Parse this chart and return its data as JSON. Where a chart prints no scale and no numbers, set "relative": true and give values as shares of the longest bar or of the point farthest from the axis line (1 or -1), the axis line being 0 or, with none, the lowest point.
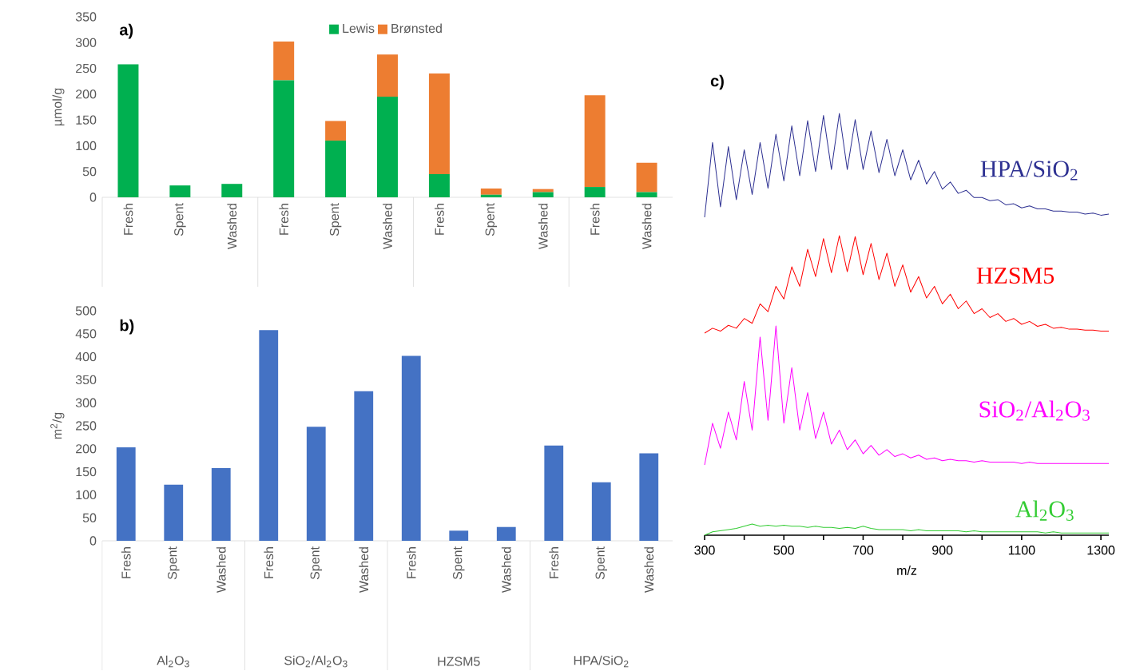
{
  "chart_data": [
    {
      "type": "bar",
      "stacked": true,
      "ylabel": "µmol/g",
      "ylim": [
        0,
        350
      ],
      "yticks": [
        0,
        50,
        100,
        150,
        200,
        250,
        300,
        350
      ],
      "legend": "top",
      "annotations": [
        "**a)**"
      ],
      "categories": [
        "Fresh",
        "Spent",
        "Washed",
        "Fresh",
        "Spent",
        "Washed",
        "Fresh",
        "Spent",
        "Washed",
        "Fresh",
        "Washed"
      ],
      "series": [
        {
          "name": "Lewis",
          "color": "#00b050",
          "values": [
            258,
            23,
            26,
            227,
            110,
            195,
            45,
            5,
            10,
            20,
            10
          ]
        },
        {
          "name": "Brønsted",
          "color": "#ed7d31",
          "values": [
            0,
            0,
            0,
            75,
            38,
            82,
            195,
            12,
            6,
            178,
            57
          ]
        }
      ]
    },
    {
      "type": "bar",
      "ylabel": "m$^{2}$/g",
      "ylim": [
        0,
        500
      ],
      "yticks": [
        0,
        50,
        100,
        150,
        200,
        250,
        300,
        350,
        400,
        450,
        500
      ],
      "annotations": [
        "**b)**",
        "Al$_{2}$O$_{3}$",
        "SiO$_{2}$/Al$_{2}$O$_{3}$",
        "HZSM5",
        "HPA/SiO$_{2}$"
      ],
      "categories": [
        "Fresh",
        "Spent",
        "Washed",
        "Fresh",
        "Spent",
        "Washed",
        "Fresh",
        "Spent",
        "Washed",
        "Fresh",
        "Spent",
        "Washed"
      ],
      "color": "#4472c4",
      "values": [
        203,
        122,
        158,
        458,
        248,
        325,
        402,
        22,
        30,
        207,
        127,
        190
      ]
    },
    {
      "type": "line",
      "relative": true,
      "tick_labels": false,
      "annotations": [
        "**c)**"
      ],
      "x": [
        300,
        320,
        340,
        360,
        380,
        400,
        420,
        440,
        460,
        480,
        500,
        520,
        540,
        560,
        580,
        600,
        620,
        640,
        660,
        680,
        700,
        720,
        740,
        760,
        780,
        800,
        820,
        840,
        860,
        880,
        900,
        920,
        940,
        960,
        980,
        1000,
        1020,
        1040,
        1060,
        1080,
        1100,
        1120,
        1140,
        1160,
        1180,
        1200,
        1220,
        1240,
        1260,
        1280,
        1300,
        1320
      ],
      "series": [
        {
          "name": "HPA/SiO$_{2}$",
          "color": "#2e3192",
          "values": [
            0,
            0.72,
            0.1,
            0.68,
            0.17,
            0.65,
            0.22,
            0.72,
            0.28,
            0.8,
            0.35,
            0.88,
            0.4,
            0.93,
            0.44,
            0.98,
            0.46,
            1.0,
            0.46,
            0.94,
            0.46,
            0.83,
            0.43,
            0.75,
            0.4,
            0.65,
            0.36,
            0.55,
            0.32,
            0.44,
            0.27,
            0.34,
            0.23,
            0.26,
            0.19,
            0.19,
            0.16,
            0.17,
            0.12,
            0.13,
            0.09,
            0.11,
            0.08,
            0.08,
            0.06,
            0.06,
            0.05,
            0.05,
            0.03,
            0.04,
            0.02,
            0.03
          ]
        }
      ]
    },
    {
      "type": "line",
      "relative": true,
      "tick_labels": false,
      "x": [
        300,
        320,
        340,
        360,
        380,
        400,
        420,
        440,
        460,
        480,
        500,
        520,
        540,
        560,
        580,
        600,
        620,
        640,
        660,
        680,
        700,
        720,
        740,
        760,
        780,
        800,
        820,
        840,
        860,
        880,
        900,
        920,
        940,
        960,
        980,
        1000,
        1020,
        1040,
        1060,
        1080,
        1100,
        1120,
        1140,
        1160,
        1180,
        1200,
        1220,
        1240,
        1260,
        1280,
        1300,
        1320
      ],
      "series": [
        {
          "name": "HZSM5",
          "color": "#ff0000",
          "values": [
            0,
            0.05,
            0.02,
            0.08,
            0.05,
            0.15,
            0.1,
            0.3,
            0.22,
            0.48,
            0.35,
            0.68,
            0.48,
            0.86,
            0.58,
            0.97,
            0.62,
            1.0,
            0.63,
            0.99,
            0.6,
            0.92,
            0.55,
            0.82,
            0.48,
            0.7,
            0.42,
            0.58,
            0.36,
            0.48,
            0.3,
            0.4,
            0.25,
            0.33,
            0.2,
            0.25,
            0.16,
            0.2,
            0.12,
            0.15,
            0.09,
            0.12,
            0.07,
            0.09,
            0.05,
            0.06,
            0.04,
            0.04,
            0.03,
            0.03,
            0.02,
            0.02
          ]
        }
      ]
    },
    {
      "type": "line",
      "relative": true,
      "tick_labels": false,
      "x": [
        300,
        320,
        340,
        360,
        380,
        400,
        420,
        440,
        460,
        480,
        500,
        520,
        540,
        560,
        580,
        600,
        620,
        640,
        660,
        680,
        700,
        720,
        740,
        760,
        780,
        800,
        820,
        840,
        860,
        880,
        900,
        920,
        940,
        960,
        980,
        1000,
        1020,
        1040,
        1060,
        1080,
        1100,
        1120,
        1140,
        1160,
        1180,
        1200,
        1220,
        1240,
        1260,
        1280,
        1300,
        1320
      ],
      "series": [
        {
          "name": "SiO$_{2}$/Al$_{2}$O$_{3}$",
          "color": "#ff00ff",
          "values": [
            0,
            0.3,
            0.12,
            0.38,
            0.18,
            0.6,
            0.25,
            0.92,
            0.32,
            1.0,
            0.3,
            0.7,
            0.25,
            0.52,
            0.19,
            0.38,
            0.15,
            0.25,
            0.11,
            0.18,
            0.08,
            0.14,
            0.07,
            0.11,
            0.06,
            0.08,
            0.05,
            0.07,
            0.04,
            0.05,
            0.03,
            0.04,
            0.03,
            0.03,
            0.02,
            0.03,
            0.02,
            0.02,
            0.02,
            0.02,
            0.01,
            0.02,
            0.01,
            0.01,
            0.01,
            0.01,
            0.01,
            0.01,
            0.01,
            0.01,
            0.01,
            0.01
          ]
        }
      ]
    },
    {
      "type": "line",
      "relative": true,
      "tick_labels": "x",
      "xlabel": "m/z",
      "xlim": [
        300,
        1320
      ],
      "xticks": [
        300,
        {
          "value": 400,
          "label": null
        },
        500,
        {
          "value": 600,
          "label": null
        },
        700,
        {
          "value": 800,
          "label": null
        },
        900,
        {
          "value": 1000,
          "label": null
        },
        1100,
        {
          "value": 1200,
          "label": null
        },
        1300
      ],
      "x": [
        300,
        320,
        340,
        360,
        380,
        400,
        420,
        440,
        460,
        480,
        500,
        520,
        540,
        560,
        580,
        600,
        620,
        640,
        660,
        680,
        700,
        720,
        740,
        760,
        780,
        800,
        820,
        840,
        860,
        880,
        900,
        920,
        940,
        960,
        980,
        1000,
        1020,
        1040,
        1060,
        1080,
        1100,
        1120,
        1140,
        1160,
        1180,
        1200,
        1220,
        1240,
        1260,
        1280,
        1300,
        1320
      ],
      "series": [
        {
          "name": "Al$_{2}$O$_{3}$",
          "color": "#33cc33",
          "values": [
            0,
            0.3,
            0.4,
            0.5,
            0.6,
            0.8,
            1.0,
            0.8,
            0.9,
            0.8,
            0.9,
            0.8,
            0.8,
            0.7,
            0.8,
            0.7,
            0.7,
            0.6,
            0.7,
            0.6,
            0.8,
            0.6,
            0.5,
            0.5,
            0.5,
            0.5,
            0.4,
            0.5,
            0.4,
            0.4,
            0.4,
            0.4,
            0.4,
            0.3,
            0.4,
            0.3,
            0.3,
            0.3,
            0.3,
            0.3,
            0.3,
            0.3,
            0.3,
            0.2,
            0.3,
            0.2,
            0.2,
            0.2,
            0.2,
            0.2,
            0.2,
            0.2
          ]
        }
      ]
    }
  ]
}
